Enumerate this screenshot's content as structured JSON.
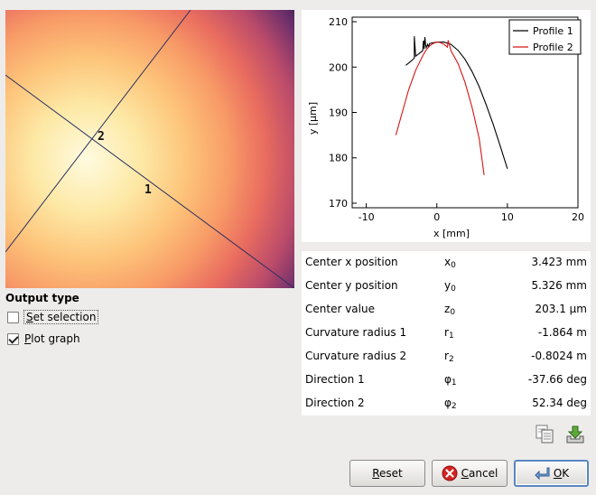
{
  "output_type": {
    "title": "Output type",
    "options": [
      {
        "mnemonic": "S",
        "rest": "et selection",
        "checked": false
      },
      {
        "mnemonic": "P",
        "rest": "lot graph",
        "checked": true
      }
    ]
  },
  "heightmap": {
    "line_labels": [
      "1",
      "2"
    ]
  },
  "chart_data": {
    "type": "line",
    "xlabel": "x [mm]",
    "ylabel": "y [µm]",
    "xlim": [
      -12,
      20
    ],
    "ylim": [
      169,
      211
    ],
    "x_ticks": [
      "-10",
      "0",
      "10",
      "20"
    ],
    "y_ticks": [
      "170",
      "180",
      "190",
      "200",
      "210"
    ],
    "legend_position": "top-right",
    "series": [
      {
        "name": "Profile 1",
        "color": "#000000",
        "x": [
          -4.4,
          -3.5,
          -3.2,
          -3.2,
          -3.0,
          -2.0,
          -1.9,
          -1.8,
          -1.7,
          -1.6,
          -1.5,
          -1.4,
          -1.3,
          -1.2,
          -1.0,
          0.0,
          1.0,
          2.0,
          3.0,
          4.0,
          5.0,
          6.0,
          7.0,
          8.0,
          9.0,
          10.0
        ],
        "y": [
          200.4,
          201.5,
          202.0,
          206.8,
          202.4,
          203.6,
          205.8,
          204.0,
          206.6,
          205.0,
          204.3,
          204.6,
          205.0,
          204.5,
          205.2,
          205.5,
          205.5,
          205.0,
          203.7,
          201.7,
          199.0,
          195.7,
          191.7,
          187.3,
          182.5,
          177.6
        ]
      },
      {
        "name": "Profile 2",
        "color": "#d81414",
        "x": [
          -5.8,
          -5.0,
          -4.0,
          -3.0,
          -2.0,
          -1.5,
          -1.0,
          -0.5,
          0.0,
          0.5,
          1.0,
          1.5,
          1.6,
          2.0,
          3.0,
          4.0,
          5.0,
          6.0,
          6.7
        ],
        "y": [
          185.0,
          189.5,
          195.0,
          199.3,
          202.5,
          203.8,
          204.7,
          205.2,
          205.5,
          205.4,
          205.0,
          204.4,
          205.9,
          203.6,
          200.8,
          196.6,
          191.1,
          184.3,
          176.2
        ]
      }
    ]
  },
  "results": [
    {
      "label": "Center x position",
      "sym": "x",
      "sub": "0",
      "value": "3.423 mm"
    },
    {
      "label": "Center y position",
      "sym": "y",
      "sub": "0",
      "value": "5.326 mm"
    },
    {
      "label": "Center value",
      "sym": "z",
      "sub": "0",
      "value": "203.1 µm"
    },
    {
      "label": "Curvature radius 1",
      "sym": "r",
      "sub": "1",
      "value": "-1.864 m"
    },
    {
      "label": "Curvature radius 2",
      "sym": "r",
      "sub": "2",
      "value": "-0.8024 m"
    },
    {
      "label": "Direction 1",
      "sym": "φ",
      "sub": "1",
      "value": "-37.66 deg"
    },
    {
      "label": "Direction 2",
      "sym": "φ",
      "sub": "2",
      "value": "52.34 deg"
    }
  ],
  "icons": {
    "copy": "copy-icon",
    "save": "save-icon"
  },
  "buttons": {
    "reset": {
      "mnemonic": "R",
      "rest": "eset"
    },
    "cancel": {
      "mnemonic": "C",
      "rest": "ancel"
    },
    "ok": {
      "mnemonic": "O",
      "rest": "K"
    }
  },
  "colors": {
    "profile1": "#000000",
    "profile2": "#d81414",
    "focus": "#5a86c2"
  }
}
